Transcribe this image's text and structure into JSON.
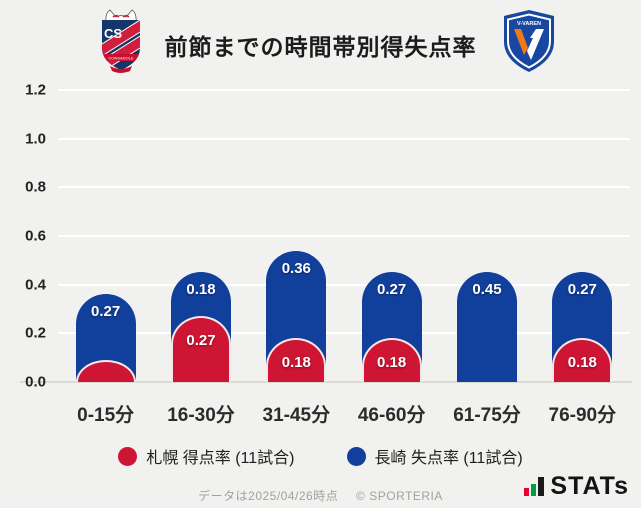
{
  "header": {
    "title": "前節までの時間帯別得失点率",
    "left_logo": "consadole-sapporo-crest",
    "right_logo": "v-varen-nagasaki-crest"
  },
  "chart_data": {
    "type": "bar",
    "stacked": true,
    "title": "前節までの時間帯別得失点率",
    "categories": [
      "0-15分",
      "16-30分",
      "31-45分",
      "46-60分",
      "61-75分",
      "76-90分"
    ],
    "series": [
      {
        "name": "札幌 得点率 (11試合)",
        "position": "front",
        "color": "#ce1533",
        "values": [
          0.09,
          0.27,
          0.18,
          0.18,
          0,
          0.18
        ],
        "labels": [
          "",
          "0.27",
          "0.18",
          "0.18",
          "",
          "0.18"
        ]
      },
      {
        "name": "長崎 失点率 (11試合)",
        "position": "back",
        "color": "#113f9c",
        "values": [
          0.27,
          0.18,
          0.36,
          0.27,
          0.45,
          0.27
        ],
        "labels": [
          "0.27",
          "0.18",
          "0.36",
          "0.27",
          "0.45",
          "0.27"
        ]
      }
    ],
    "ylim": [
      0,
      1.2
    ],
    "yticks": [
      "0.0",
      "0.2",
      "0.4",
      "0.6",
      "0.8",
      "1.0",
      "1.2"
    ],
    "grid": true,
    "legend_position": "bottom"
  },
  "footer": {
    "note": "データは2025/04/26時点",
    "copyright": "© SPORTERIA",
    "brand_text": "STATs"
  }
}
